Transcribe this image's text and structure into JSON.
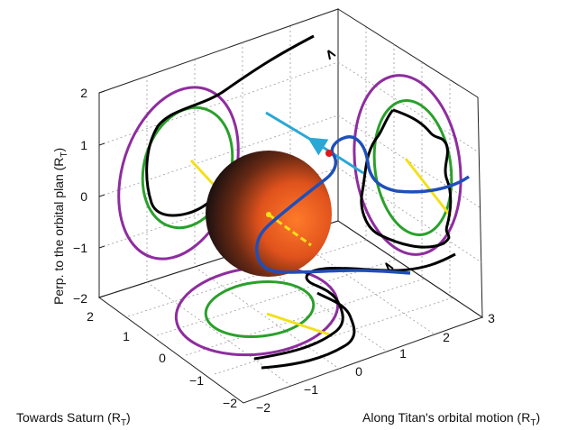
{
  "axes": {
    "z_label": "Perp. to the orbital plan (R",
    "z_label_sub": "T",
    "z_label_end": ")",
    "x_label": "Towards Saturn (R",
    "x_label_sub": "T",
    "x_label_end": ")",
    "y_label": "Along Titan's orbital motion (R",
    "y_label_sub": "T",
    "y_label_end": ")",
    "z_ticks": [
      "2",
      "1",
      "0",
      "−1",
      "−2"
    ],
    "x_ticks": [
      "2",
      "1",
      "0",
      "−1",
      "−2"
    ],
    "y_ticks": [
      "−2",
      "−1",
      "0",
      "1",
      "2",
      "3"
    ]
  },
  "colors": {
    "trajectory": "#1f4fb8",
    "field_line": "#000000",
    "outer_boundary": "#8e2d9e",
    "inner_boundary": "#2aa02a",
    "projection": "#f2e01a",
    "flow_vector": "#29a8d6",
    "marker": "#e01818",
    "titan_light": "#ff6a1a",
    "titan_dark": "#0a0a0a"
  }
}
